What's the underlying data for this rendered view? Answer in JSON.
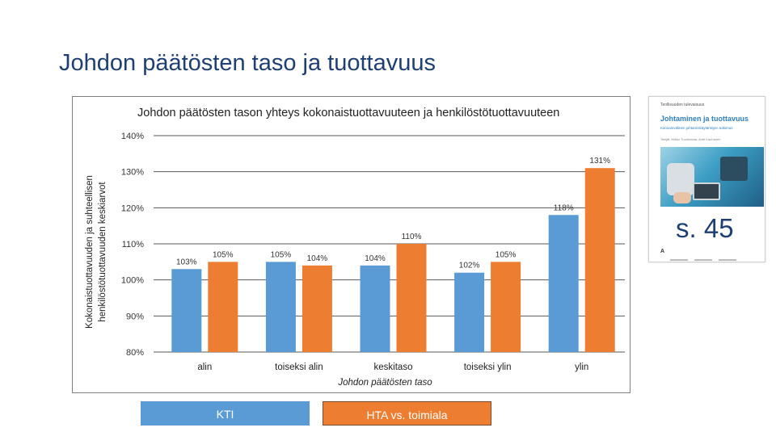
{
  "slide": {
    "title": "Johdon päätösten taso ja tuottavuus",
    "page_ref": "s. 45"
  },
  "book": {
    "series": "Teollisuuden tulevaisuus",
    "title": "Johtaminen ja tuottavuus",
    "subtitle": "Kansainvälinen johtamiskäytäntöjen tutkimus",
    "authors": "Tekijät: Mikko Tuomiranta, Antti Kauhanen",
    "logo": "A"
  },
  "legend": [
    {
      "label": "KTI",
      "color": "#5b9bd5"
    },
    {
      "label": "HTA vs. toimiala",
      "color": "#ed7d31"
    }
  ],
  "chart_data": {
    "type": "bar",
    "title": "Johdon päätösten tason yhteys kokonaistuottavuuteen ja henkilöstötuottavuuteen",
    "xlabel": "Johdon päätösten taso",
    "ylabel_lines": [
      "Kokonaistuottavuuden ja suhteellisen",
      "henkilöstötuottavuuden keskiarvot"
    ],
    "categories": [
      "alin",
      "toiseksi alin",
      "keskitaso",
      "toiseksi ylin",
      "ylin"
    ],
    "ylim": [
      80,
      140
    ],
    "yticks": [
      80,
      90,
      100,
      110,
      120,
      130,
      140
    ],
    "ytick_labels": [
      "80%",
      "90%",
      "100%",
      "110%",
      "120%",
      "130%",
      "140%"
    ],
    "series": [
      {
        "name": "KTI",
        "color": "#5b9bd5",
        "values": [
          103,
          105,
          104,
          102,
          118
        ],
        "labels": [
          "103%",
          "105%",
          "104%",
          "102%",
          "118%"
        ]
      },
      {
        "name": "HTA vs. toimiala",
        "color": "#ed7d31",
        "values": [
          105,
          104,
          110,
          105,
          131
        ],
        "labels": [
          "105%",
          "104%",
          "110%",
          "105%",
          "131%"
        ]
      }
    ]
  }
}
